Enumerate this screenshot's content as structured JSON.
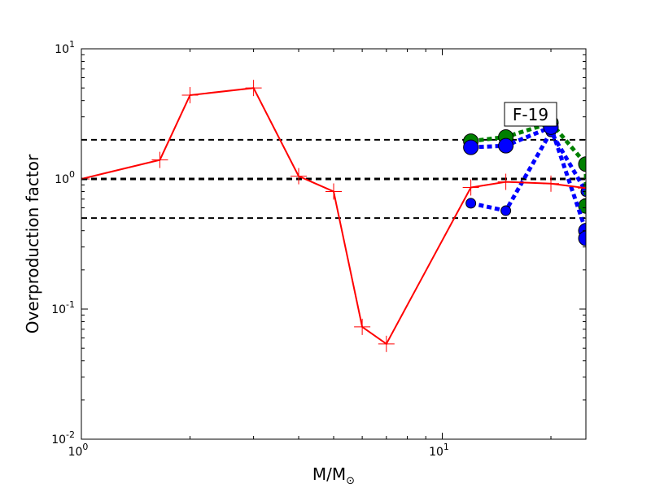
{
  "chart_data": {
    "type": "line",
    "xscale": "log",
    "yscale": "log",
    "xlim": [
      1,
      25
    ],
    "ylim": [
      0.01,
      10
    ],
    "xlabel": "M/M",
    "xlabel_sub": "⊙",
    "ylabel": "Overproduction factor",
    "x_ticks": [
      {
        "value": 1,
        "base": "10",
        "exp": "0"
      },
      {
        "value": 10,
        "base": "10",
        "exp": "1"
      }
    ],
    "y_ticks": [
      {
        "value": 0.01,
        "base": "10",
        "exp": "-2"
      },
      {
        "value": 0.1,
        "base": "10",
        "exp": "-1"
      },
      {
        "value": 1,
        "base": "10",
        "exp": "0"
      },
      {
        "value": 10,
        "base": "10",
        "exp": "1"
      }
    ],
    "reference_lines": [
      {
        "y": 2,
        "style": "dashed"
      },
      {
        "y": 1,
        "style": "dashed-bold"
      },
      {
        "y": 0.5,
        "style": "dashed"
      }
    ],
    "annotation": "F-19",
    "series": [
      {
        "color": "#ff0000",
        "line": "solid",
        "marker": "plus",
        "x": [
          1.0,
          1.65,
          2.0,
          3.0,
          4.0,
          5.0,
          6.0,
          7.0,
          12.0,
          15.0,
          20.0,
          25.0
        ],
        "y": [
          1.0,
          1.4,
          4.4,
          5.0,
          1.05,
          0.8,
          0.073,
          0.054,
          0.86,
          0.95,
          0.92,
          0.85
        ]
      },
      {
        "color": "#008000",
        "line": "dotted",
        "marker": "circle",
        "x": [
          12.0,
          15.0,
          20.0,
          25.0,
          25.0
        ],
        "y": [
          1.95,
          2.1,
          2.7,
          1.3,
          0.62
        ]
      },
      {
        "color": "#0000ff",
        "line": "dotted",
        "marker": "circle",
        "x": [
          12.0,
          15.0,
          20.0,
          25.0,
          25.0
        ],
        "y": [
          1.75,
          1.8,
          2.5,
          0.4,
          0.35
        ]
      },
      {
        "color": "#0000ff",
        "line": "dotted",
        "marker": "circle-small",
        "x": [
          12.0,
          15.0,
          20.0,
          25.0
        ],
        "y": [
          0.65,
          0.57,
          2.3,
          0.8
        ]
      }
    ]
  }
}
